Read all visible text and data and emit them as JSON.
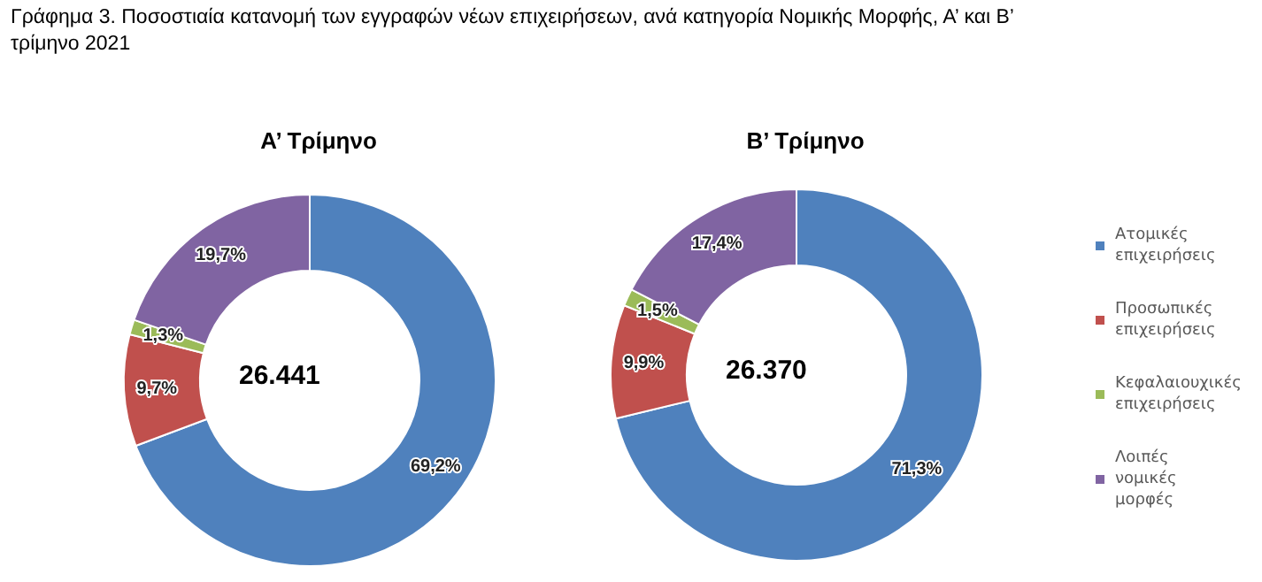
{
  "chart_data": [
    {
      "type": "donut",
      "title": "Α’ Τρίμηνο",
      "annotations": [
        "Γράφημα 3. Ποσοστιαία κατανομή των εγγραφών νέων επιχειρήσεων, ανά κατηγορία Νομικής Μορφής, Α’ και Β’ τρίμηνο 2021",
        "26.441"
      ],
      "categories": [
        null,
        null,
        null,
        null
      ],
      "values": [
        69.2,
        9.7,
        1.3,
        19.7
      ],
      "value_labels": [
        "69,2%",
        "9,7%",
        "1,3%",
        "19,7%"
      ],
      "colors": [
        "#4f81bd",
        "#c0504d",
        "#9bbb59",
        "#8064a2"
      ],
      "legend": false
    },
    {
      "type": "donut",
      "title": "Β’ Τρίμηνο",
      "annotations": [
        "26.370"
      ],
      "categories": [
        "Ατομικές επιχειρήσεις",
        "Προσωπικές επιχειρήσεις",
        "Κεφαλαιουχικές επιχειρήσεις",
        "Λοιπές νομικές μορφές"
      ],
      "values": [
        71.3,
        9.9,
        1.5,
        17.4
      ],
      "value_labels": [
        "71,3%",
        "9,9%",
        "1,5%",
        "17,4%"
      ],
      "colors": [
        "#4f81bd",
        "#c0504d",
        "#9bbb59",
        "#8064a2"
      ],
      "legend": "right"
    }
  ]
}
